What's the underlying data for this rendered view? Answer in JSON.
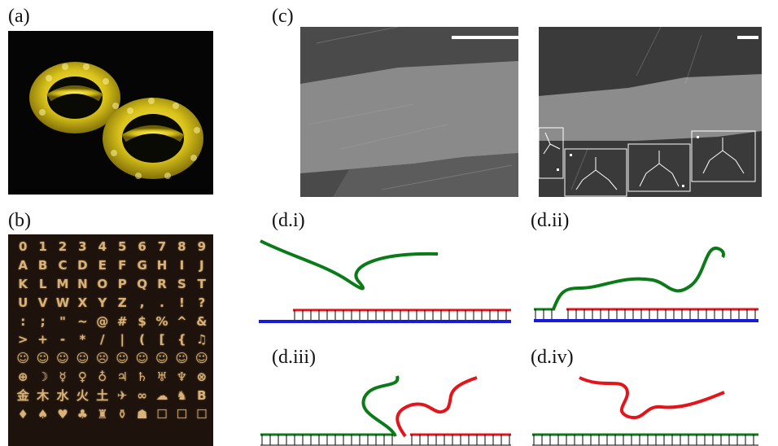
{
  "figure": {
    "labels": {
      "a": "(a)",
      "b": "(b)",
      "c": "(c)",
      "d_i": "(d.i)",
      "d_ii": "(d.ii)",
      "d_iii": "(d.iii)",
      "d_iv": "(d.iv)"
    },
    "glyphs": [
      "0",
      "1",
      "2",
      "3",
      "4",
      "5",
      "6",
      "7",
      "8",
      "9",
      "A",
      "B",
      "C",
      "D",
      "E",
      "F",
      "G",
      "H",
      "I",
      "J",
      "K",
      "L",
      "M",
      "N",
      "O",
      "P",
      "Q",
      "R",
      "S",
      "T",
      "U",
      "V",
      "W",
      "X",
      "Y",
      "Z",
      ",",
      ".",
      "!",
      "?",
      ":",
      ";",
      "\"",
      "~",
      "@",
      "#",
      "$",
      "%",
      "^",
      "&",
      ">",
      "+",
      "-",
      "*",
      "/",
      "|",
      "(",
      "[",
      "{",
      "♫",
      "☺",
      "☺",
      "☺",
      "☺",
      "☹",
      "☺",
      "☺",
      "☺",
      "☺",
      "☺",
      "⊕",
      "☽",
      "☿",
      "♀",
      "♁",
      "♃",
      "♄",
      "♅",
      "♆",
      "⊗",
      "金",
      "木",
      "水",
      "火",
      "土",
      "✈",
      "∞",
      "☁",
      "♞",
      "B",
      "♦",
      "♠",
      "♥",
      "♣",
      "♜",
      "⚱",
      "☗",
      "☐",
      "☐",
      "☐",
      "",
      "",
      "",
      "",
      "",
      "",
      "",
      "",
      "",
      ""
    ],
    "colors": {
      "green_strand": "#0b7a18",
      "red_strand": "#e3141b",
      "blue_strand": "#1a1adb",
      "afm_gold": "#d8b27a",
      "afm_yellow": "#e2d21e"
    }
  }
}
